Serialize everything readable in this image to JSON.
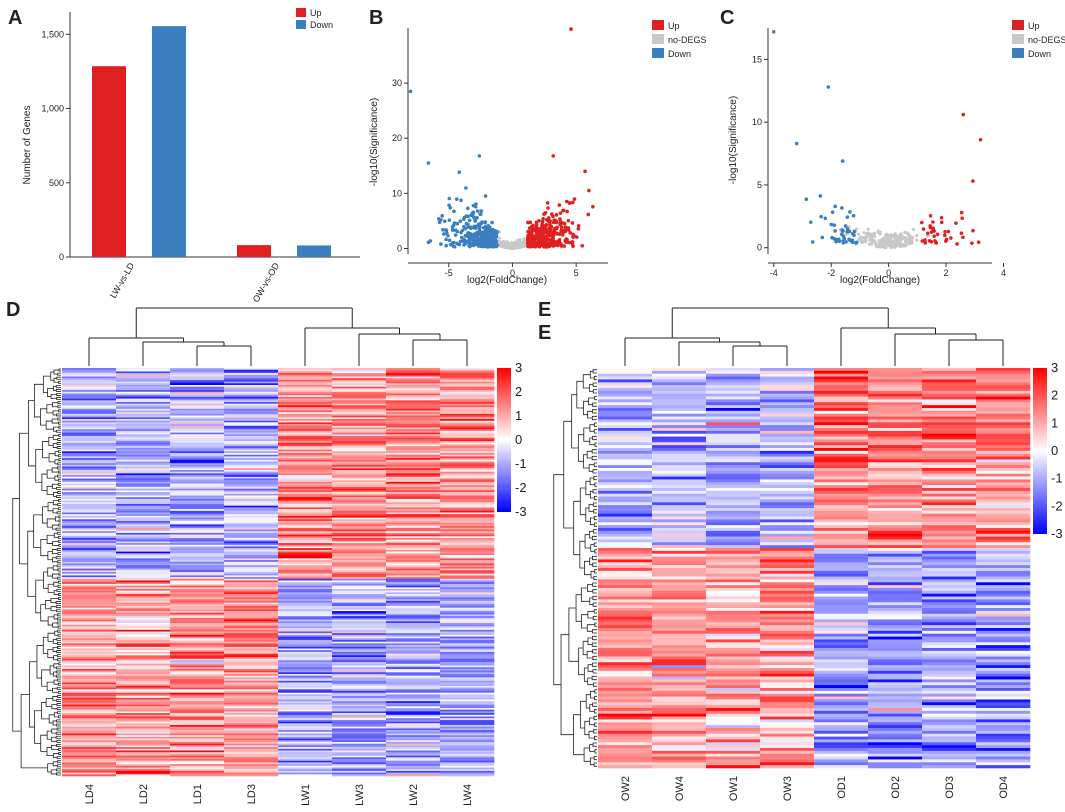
{
  "panels": {
    "A": "A",
    "B": "B",
    "C": "C",
    "D": "D",
    "E": "E",
    "E2": "E"
  },
  "chart_data": [
    {
      "id": "A",
      "type": "bar",
      "ylabel": "Number of Genes",
      "categories": [
        "LW-vs-LD",
        "OW-vs-OD"
      ],
      "series": [
        {
          "name": "Up",
          "color": "#e02020",
          "values": [
            1285,
            80
          ]
        },
        {
          "name": "Down",
          "color": "#3a7fc0",
          "values": [
            1555,
            78
          ]
        }
      ],
      "ylim": [
        0,
        1650
      ],
      "yticks": [
        0,
        500,
        1000,
        1500
      ],
      "ytick_labels": [
        "0",
        "500",
        "1,000",
        "1,500"
      ],
      "legend": "top-right"
    },
    {
      "id": "B",
      "type": "scatter",
      "xlabel": "log2(FoldChange)",
      "ylabel": "-log10(Significance)",
      "xlim": [
        -8.2,
        7.5
      ],
      "ylim": [
        -1,
        40
      ],
      "xticks": [
        -5,
        0,
        5
      ],
      "yticks": [
        0,
        10,
        20,
        30
      ],
      "legend_entries": [
        {
          "name": "Up",
          "color": "#e02020"
        },
        {
          "name": "no-DEGS",
          "color": "#c8c8c8"
        },
        {
          "name": "Down",
          "color": "#3a7fc0"
        }
      ],
      "outliers": [
        {
          "x": 4.6,
          "y": 39.8,
          "group": "up"
        },
        {
          "x": -8.0,
          "y": 28.5,
          "group": "down"
        },
        {
          "x": 3.2,
          "y": 16.8,
          "group": "up"
        },
        {
          "x": -2.6,
          "y": 16.8,
          "group": "down"
        },
        {
          "x": -6.6,
          "y": 15.5,
          "group": "down"
        },
        {
          "x": 5.7,
          "y": 14.0,
          "group": "up"
        },
        {
          "x": 6.0,
          "y": 10.5,
          "group": "up"
        }
      ]
    },
    {
      "id": "C",
      "type": "scatter",
      "xlabel": "log2(FoldChange)",
      "ylabel": "-log10(Significance)",
      "xlim": [
        -4.2,
        3.6
      ],
      "ylim": [
        -0.5,
        17.5
      ],
      "xticks": [
        -4,
        -2,
        0,
        2,
        4
      ],
      "yticks": [
        0,
        5,
        10,
        15
      ],
      "legend_entries": [
        {
          "name": "Up",
          "color": "#e02020"
        },
        {
          "name": "no-DEGS",
          "color": "#c8c8c8"
        },
        {
          "name": "Down",
          "color": "#3a7fc0"
        }
      ],
      "outliers": [
        {
          "x": -4.0,
          "y": 17.2,
          "group": "down"
        },
        {
          "x": -2.1,
          "y": 12.8,
          "group": "down"
        },
        {
          "x": 2.6,
          "y": 10.6,
          "group": "up"
        },
        {
          "x": 3.2,
          "y": 8.6,
          "group": "up"
        },
        {
          "x": -3.2,
          "y": 8.3,
          "group": "down"
        },
        {
          "x": -1.6,
          "y": 6.9,
          "group": "down"
        }
      ]
    },
    {
      "id": "D",
      "type": "heatmap",
      "columns": [
        "LD4",
        "LD2",
        "LD1",
        "LD3",
        "LW1",
        "LW3",
        "LW2",
        "LW4"
      ],
      "colorbar_ticks": [
        "3",
        "2",
        "1",
        "0",
        "-1",
        "-2",
        "-3"
      ],
      "clim": [
        -3,
        3
      ],
      "rows": 240,
      "split_fraction": 0.515
    },
    {
      "id": "E",
      "type": "heatmap",
      "columns": [
        "OW2",
        "OW4",
        "OW1",
        "OW3",
        "OD1",
        "OD2",
        "OD3",
        "OD4"
      ],
      "colorbar_ticks": [
        "3",
        "2",
        "1",
        "0",
        "-1",
        "-2",
        "-3"
      ],
      "clim": [
        -3,
        3
      ],
      "rows": 140,
      "split_fraction": 0.45
    }
  ]
}
